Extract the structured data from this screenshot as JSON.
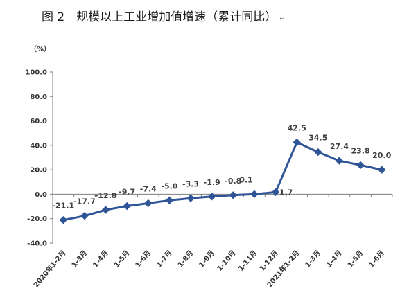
{
  "page": {
    "title": "图 2　规模以上工业增加值增速（累计同比）",
    "return_mark": "↵"
  },
  "chart_data": {
    "type": "line",
    "unit_label": "（%）",
    "categories": [
      "2020年1-2月",
      "1-3月",
      "1-4月",
      "1-5月",
      "1-6月",
      "1-7月",
      "1-8月",
      "1-9月",
      "1-10月",
      "1-11月",
      "1-12月",
      "2021年1-2月",
      "1-3月",
      "1-4月",
      "1-5月",
      "1-6月"
    ],
    "values": [
      -21.1,
      -17.7,
      -12.8,
      -9.7,
      -7.4,
      -5.0,
      -3.3,
      -1.9,
      -0.8,
      0.1,
      1.7,
      42.5,
      34.5,
      27.4,
      23.8,
      20.0
    ],
    "data_labels": [
      "-21.1",
      "-17.7",
      "-12.8",
      "-9.7",
      "-7.4",
      "-5.0",
      "-3.3",
      "-1.9",
      "-0.8",
      "0.1",
      "1.7",
      "42.5",
      "34.5",
      "27.4",
      "23.8",
      "20.0"
    ],
    "y_ticks": [
      "100.0",
      "80.0",
      "60.0",
      "40.0",
      "20.0",
      "0.0",
      "-20.0",
      "-40.0"
    ],
    "ylim": [
      -40,
      100
    ],
    "grid": false,
    "legend": "none",
    "line_color": "#2f5597",
    "marker": "diamond"
  }
}
